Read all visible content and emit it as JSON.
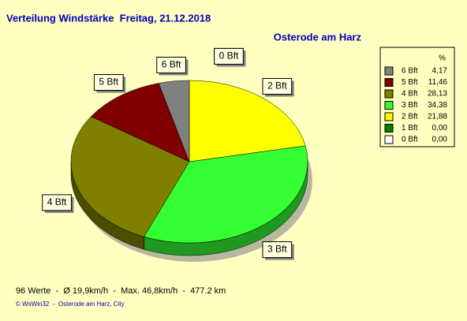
{
  "chart_data": {
    "type": "pie",
    "title": "Verteilung Windstärke  Freitag, 21.12.2018",
    "subtitle": "Osterode am Harz",
    "legend_header": "%",
    "categories": [
      "6 Bft",
      "5 Bft",
      "4 Bft",
      "3 Bft",
      "2 Bft",
      "1 Bft",
      "0 Bft"
    ],
    "values": [
      4.17,
      11.46,
      28.13,
      34.38,
      21.88,
      0,
      0
    ],
    "value_labels": [
      "4,17",
      "11,46",
      "28,13",
      "34,38",
      "21,88",
      "0,00",
      "0,00"
    ],
    "colors": [
      "#808080",
      "#800000",
      "#808000",
      "#33ff33",
      "#ffff00",
      "#008000",
      "#ffffff"
    ],
    "footer": "96 Werte  -  Ø 19,9km/h  -  Max. 46,8km/h  -  477.2 km",
    "credit": "© WsWin32  -  Osterode am Harz, City"
  }
}
